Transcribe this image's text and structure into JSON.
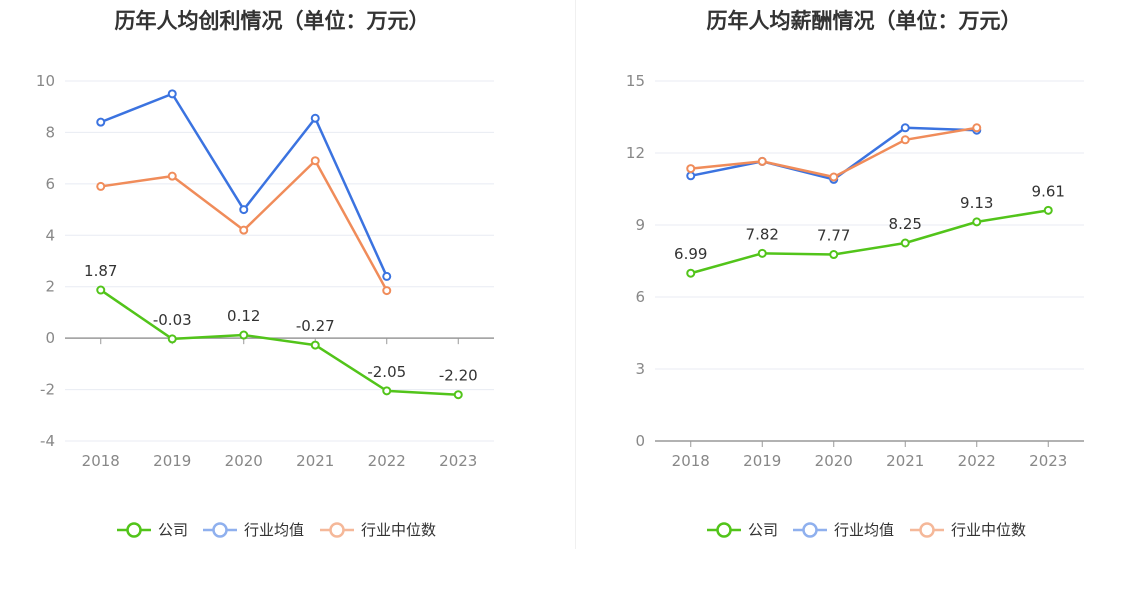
{
  "chart_data": [
    {
      "type": "line",
      "title": "历年人均创利情况（单位：万元）",
      "categories": [
        "2018",
        "2019",
        "2020",
        "2021",
        "2022",
        "2023"
      ],
      "ylim": [
        -4,
        10
      ],
      "yticks": [
        -4,
        -2,
        0,
        2,
        4,
        6,
        8,
        10
      ],
      "grid": true,
      "legend_position": "bottom-center",
      "series": [
        {
          "name": "公司",
          "values": [
            1.87,
            -0.03,
            0.12,
            -0.27,
            -2.05,
            -2.2
          ],
          "labels": [
            "1.87",
            "-0.03",
            "0.12",
            "-0.27",
            "-2.05",
            "-2.20"
          ],
          "color": "#52c41a"
        },
        {
          "name": "行业均值",
          "values": [
            8.4,
            9.5,
            5.0,
            8.55,
            2.4,
            null
          ],
          "color": "#3b73e0"
        },
        {
          "name": "行业中位数",
          "values": [
            5.9,
            6.3,
            4.2,
            6.9,
            1.85,
            null
          ],
          "color": "#f08c5a"
        }
      ]
    },
    {
      "type": "line",
      "title": "历年人均薪酬情况（单位：万元）",
      "categories": [
        "2018",
        "2019",
        "2020",
        "2021",
        "2022",
        "2023"
      ],
      "ylim": [
        0,
        15
      ],
      "yticks": [
        0,
        3,
        6,
        9,
        12,
        15
      ],
      "grid": true,
      "legend_position": "bottom-center",
      "series": [
        {
          "name": "公司",
          "values": [
            6.99,
            7.82,
            7.77,
            8.25,
            9.13,
            9.61
          ],
          "labels": [
            "6.99",
            "7.82",
            "7.77",
            "8.25",
            "9.13",
            "9.61"
          ],
          "color": "#52c41a"
        },
        {
          "name": "行业均值",
          "values": [
            11.05,
            11.65,
            10.9,
            13.05,
            12.95,
            null
          ],
          "color": "#3b73e0"
        },
        {
          "name": "行业中位数",
          "values": [
            11.35,
            11.65,
            11.0,
            12.55,
            13.05,
            null
          ],
          "color": "#f08c5a"
        }
      ]
    }
  ]
}
